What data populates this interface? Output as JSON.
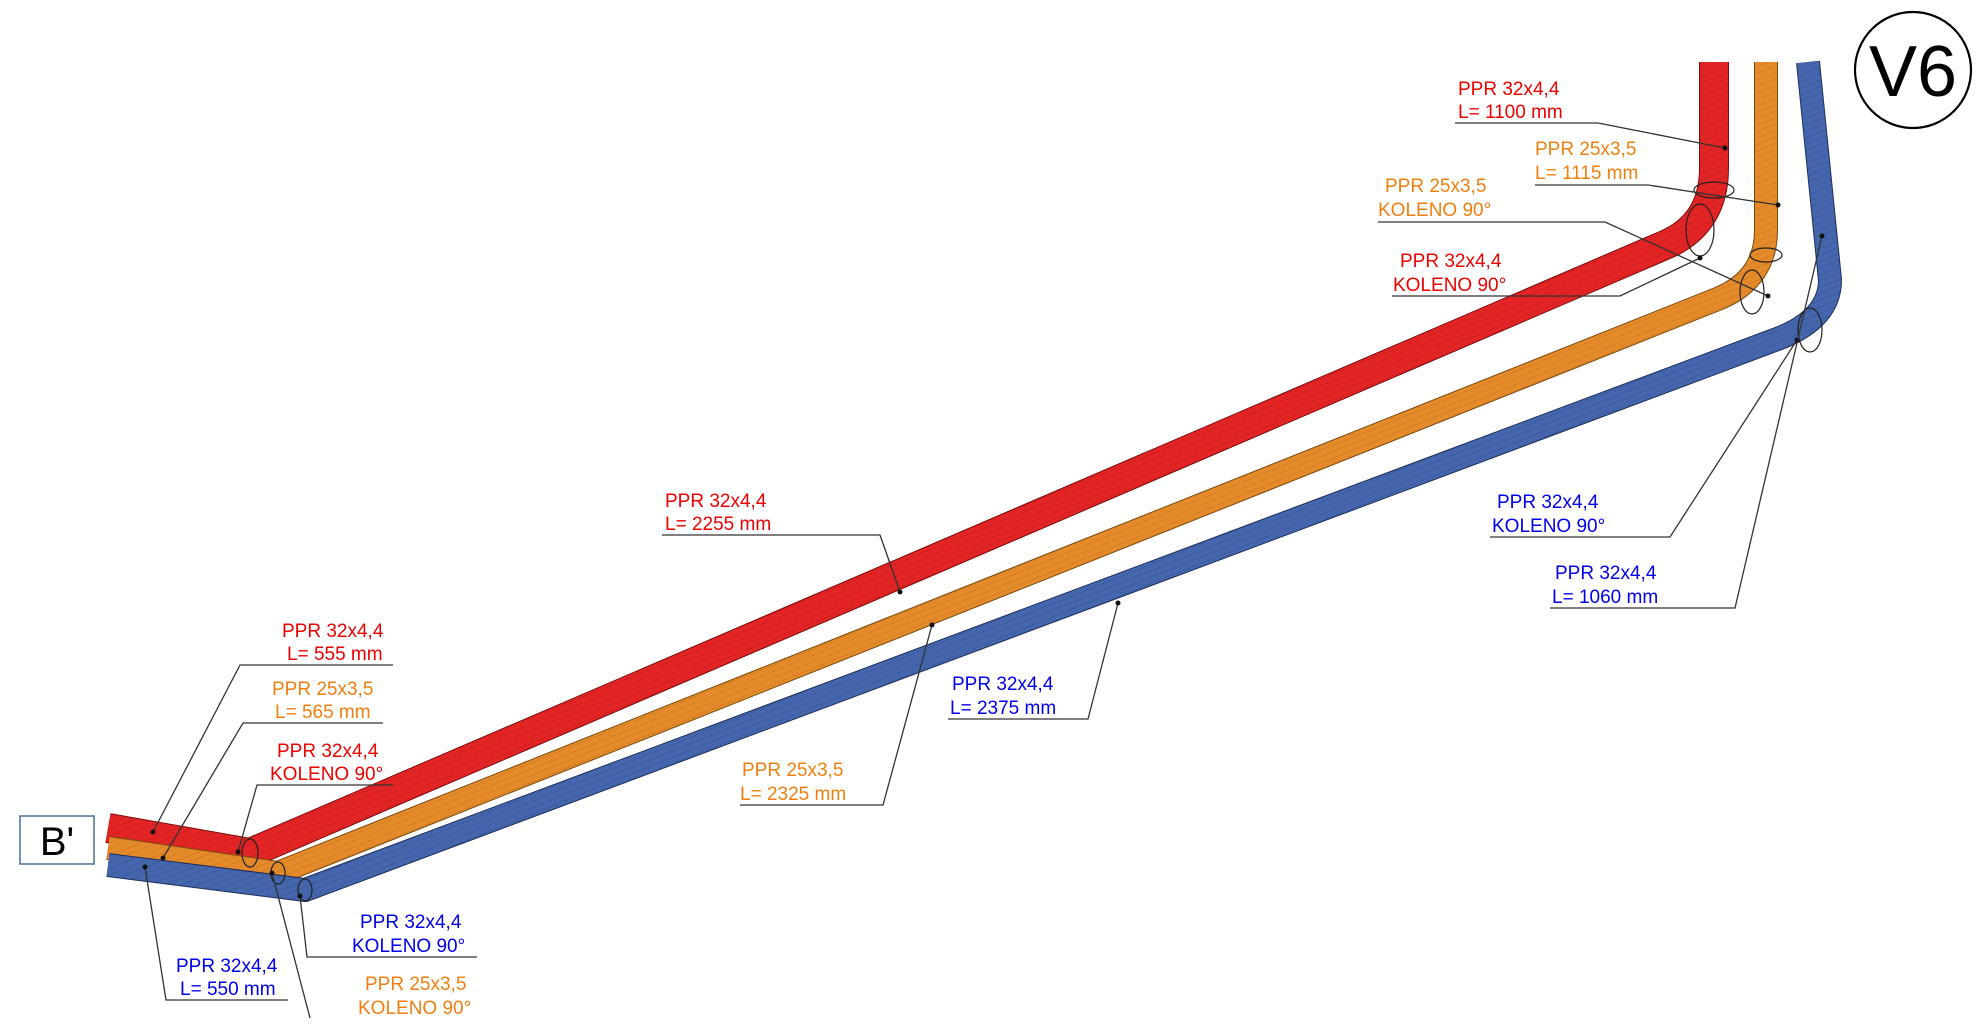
{
  "markers": {
    "start": "B'",
    "end": "V6"
  },
  "colors": {
    "red_pipe": "#e22424",
    "orange_pipe": "#e58a2a",
    "blue_pipe": "#4565ac",
    "red_text": "#ee0000",
    "orange_text": "#f07f0f",
    "blue_text": "#0000ee"
  },
  "labels": {
    "red_top_straight": {
      "line1": "PPR 32x4,4",
      "line2": "L= 1100 mm"
    },
    "orange_top_straight": {
      "line1": "PPR 25x3,5",
      "line2": "L= 1115 mm"
    },
    "orange_top_elbow": {
      "line1": "PPR 25x3,5",
      "line2": "KOLENO 90°"
    },
    "red_top_elbow": {
      "line1": "PPR 32x4,4",
      "line2": "KOLENO 90°"
    },
    "red_diagonal": {
      "line1": "PPR 32x4,4",
      "line2": "L= 2255 mm"
    },
    "blue_top_elbow": {
      "line1": "PPR 32x4,4",
      "line2": "KOLENO 90°"
    },
    "blue_top_straight": {
      "line1": "PPR 32x4,4",
      "line2": "L= 1060 mm"
    },
    "red_bottom_straight": {
      "line1": "PPR 32x4,4",
      "line2": "L= 555 mm"
    },
    "orange_bottom_straight": {
      "line1": "PPR 25x3,5",
      "line2": "L= 565 mm"
    },
    "red_bottom_elbow": {
      "line1": "PPR 32x4,4",
      "line2": "KOLENO 90°"
    },
    "blue_diagonal": {
      "line1": "PPR 32x4,4",
      "line2": "L= 2375 mm"
    },
    "orange_diagonal": {
      "line1": "PPR 25x3,5",
      "line2": "L= 2325 mm"
    },
    "blue_bottom_elbow": {
      "line1": "PPR 32x4,4",
      "line2": "KOLENO 90°"
    },
    "orange_bottom_elbow": {
      "line1": "PPR 25x3,5",
      "line2": "KOLENO 90°"
    },
    "blue_bottom_straight": {
      "line1": "PPR 32x4,4",
      "line2": "L= 550 mm"
    }
  }
}
